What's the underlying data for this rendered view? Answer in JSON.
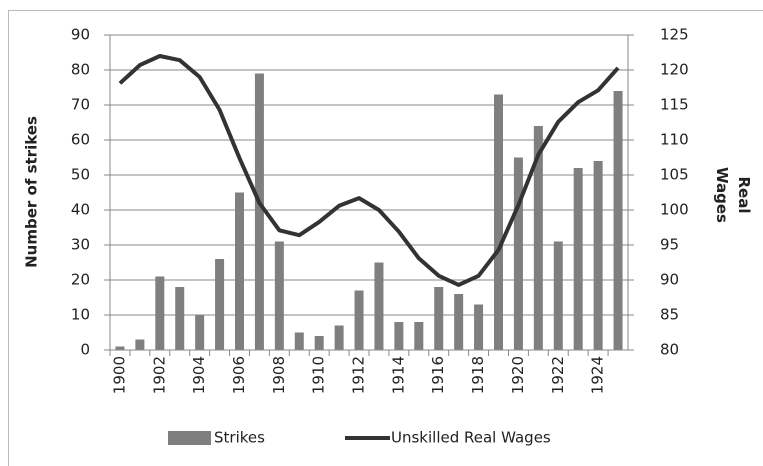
{
  "chart_data": {
    "type": "bar",
    "categories": [
      "1900",
      null,
      "1902",
      null,
      "1904",
      null,
      "1906",
      null,
      "1908",
      null,
      "1910",
      null,
      "1912",
      null,
      "1914",
      null,
      "1916",
      null,
      "1918",
      null,
      "1920",
      null,
      "1922",
      null,
      "1924",
      null
    ],
    "series": [
      {
        "name": "Strikes",
        "type": "bar",
        "color": "#7f7f7f",
        "values": [
          1,
          3,
          21,
          18,
          10,
          26,
          45,
          79,
          31,
          5,
          4,
          7,
          17,
          25,
          8,
          8,
          18,
          16,
          13,
          73,
          55,
          64,
          31,
          52,
          54,
          74
        ]
      },
      {
        "name": "Unskilled Real Wages",
        "type": "line",
        "color": "#333333",
        "axis": "y2",
        "values": [
          118.1,
          120.7,
          122,
          121.4,
          119,
          114.3,
          107.4,
          101,
          97.1,
          96.4,
          98.3,
          100.6,
          101.7,
          100,
          96.9,
          93.1,
          90.6,
          89.3,
          90.6,
          94.3,
          100.7,
          107.9,
          112.6,
          115.4,
          117.1,
          120.3
        ]
      }
    ],
    "ylabel": "Number of strikes",
    "y2label": "Real Wages",
    "ylim": [
      0,
      90
    ],
    "yticks": [
      0,
      10,
      20,
      30,
      40,
      50,
      60,
      70,
      80,
      90
    ],
    "y2lim": [
      80,
      125
    ],
    "y2ticks": [
      80,
      85,
      90,
      95,
      100,
      105,
      110,
      115,
      120,
      125
    ],
    "grid": true,
    "legend": "bottom"
  }
}
